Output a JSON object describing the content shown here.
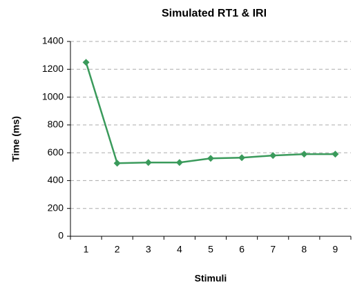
{
  "chart_data": {
    "type": "line",
    "title": "Simulated RT1 & IRI",
    "x_label": "Stimuli",
    "y_label": "Time (ms)",
    "categories": [
      "1",
      "2",
      "3",
      "4",
      "5",
      "6",
      "7",
      "8",
      "9"
    ],
    "series": [
      {
        "name": "Time",
        "color": "#3a9a5b",
        "values": [
          1250,
          525,
          530,
          530,
          560,
          565,
          580,
          590,
          590
        ]
      }
    ],
    "ylim": [
      0,
      1400
    ],
    "yticks": [
      0,
      200,
      400,
      600,
      800,
      1000,
      1200,
      1400
    ],
    "grid": true
  }
}
